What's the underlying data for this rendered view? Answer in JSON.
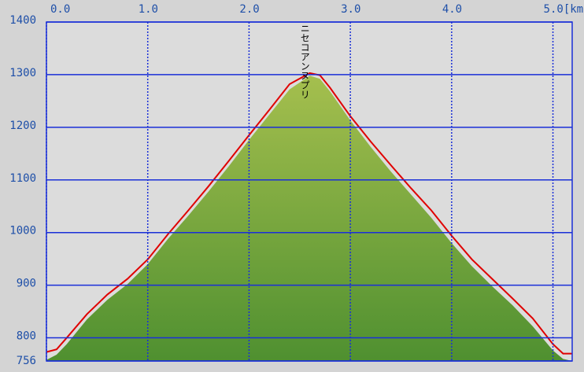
{
  "chart_data": {
    "type": "area-line",
    "annotation": "ニセコアンヌプリ",
    "annotation_x": 2.55,
    "x": [
      0,
      0.1,
      0.2,
      0.4,
      0.6,
      0.8,
      1.0,
      1.2,
      1.4,
      1.6,
      1.8,
      2.0,
      2.2,
      2.4,
      2.6,
      2.7,
      2.8,
      3.0,
      3.2,
      3.4,
      3.6,
      3.8,
      4.0,
      4.2,
      4.4,
      4.6,
      4.8,
      5.0,
      5.1,
      5.19
    ],
    "series": [
      {
        "color": "#6a9e38",
        "values": [
          758,
          768,
          788,
          835,
          872,
          902,
          940,
          988,
          1032,
          1078,
          1126,
          1176,
          1224,
          1272,
          1298,
          1292,
          1268,
          1213,
          1163,
          1116,
          1072,
          1028,
          980,
          936,
          898,
          862,
          822,
          776,
          760,
          756
        ]
      },
      {
        "color": "#e00000",
        "values": [
          773,
          778,
          800,
          845,
          882,
          912,
          949,
          997,
          1042,
          1088,
          1136,
          1185,
          1233,
          1282,
          1303,
          1299,
          1275,
          1221,
          1173,
          1128,
          1084,
          1042,
          994,
          949,
          912,
          875,
          837,
          788,
          770,
          770
        ]
      }
    ],
    "xlim": [
      0,
      5.19
    ],
    "ylim": [
      756,
      1400
    ],
    "xticks": [
      {
        "value": 0,
        "label": "0.0"
      },
      {
        "value": 1,
        "label": "1.0"
      },
      {
        "value": 2,
        "label": "2.0"
      },
      {
        "value": 3,
        "label": "3.0"
      },
      {
        "value": 4,
        "label": "4.0"
      },
      {
        "value": 5,
        "label": "5.0[km"
      }
    ],
    "yticks": [
      756,
      800,
      900,
      1000,
      1100,
      1200,
      1300,
      1400
    ],
    "grid": true
  }
}
